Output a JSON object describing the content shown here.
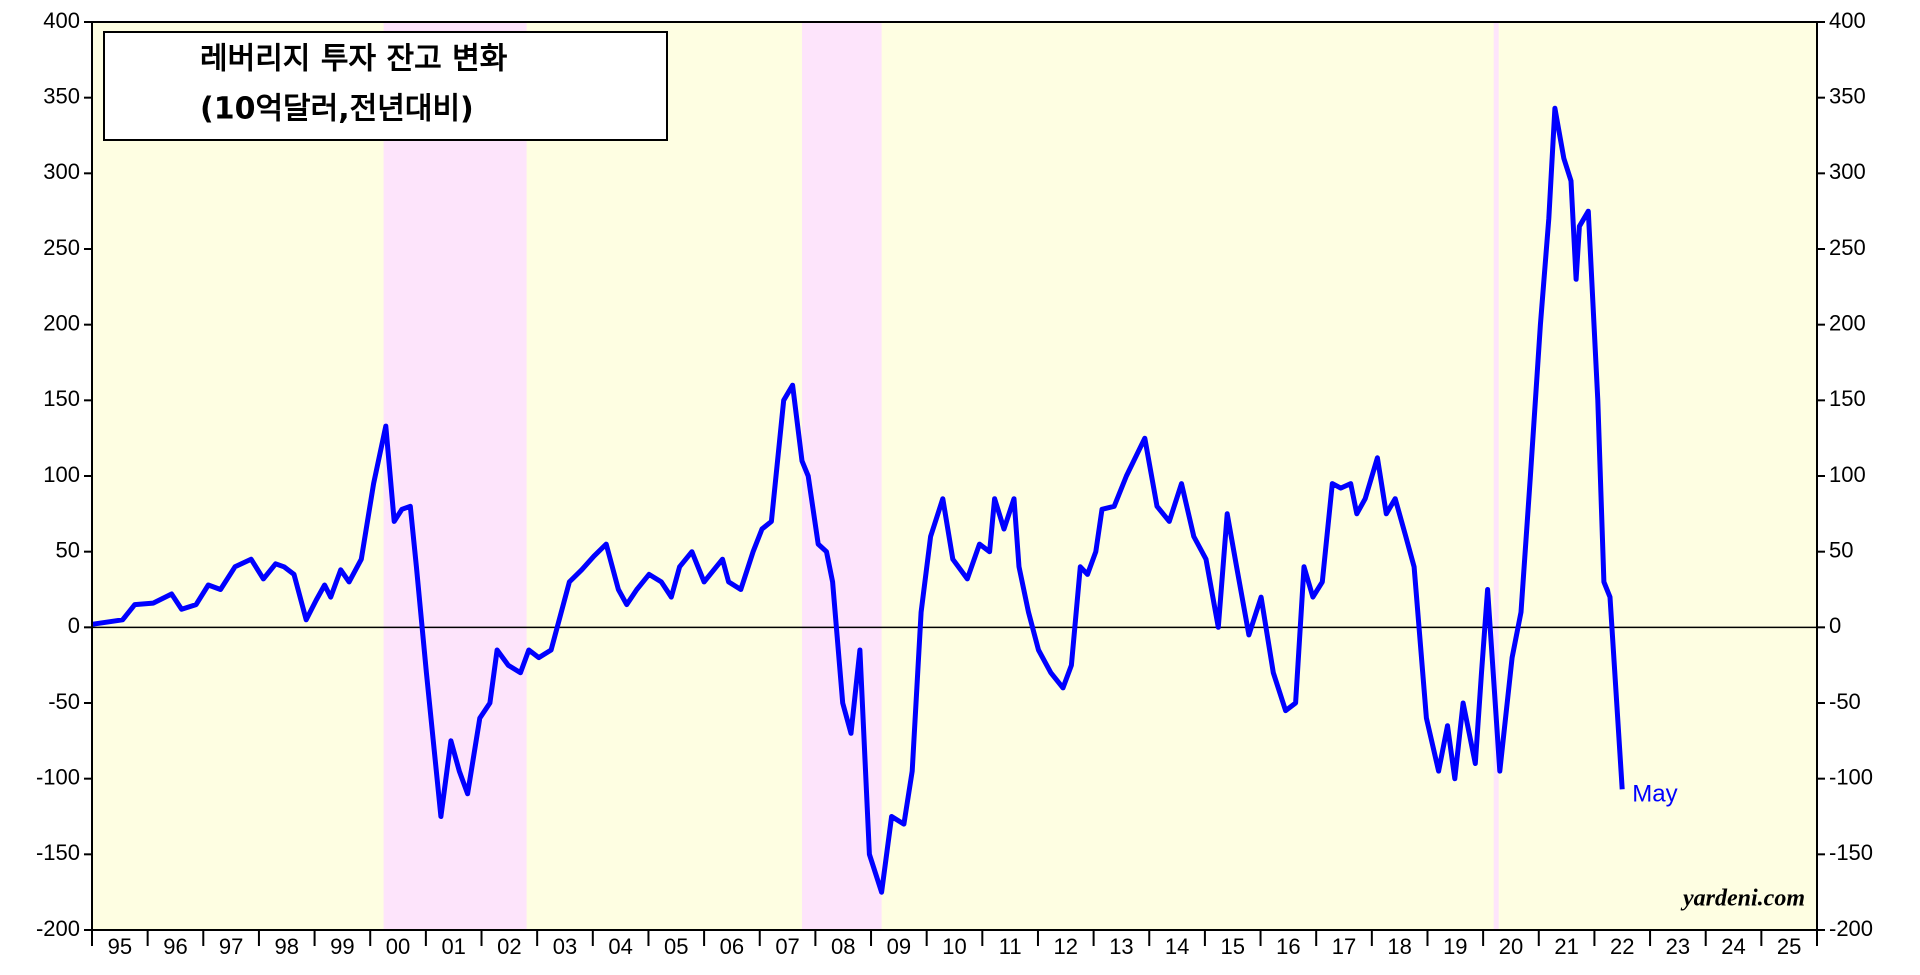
{
  "chart_data": {
    "type": "line",
    "title": "레버리지 투자 잔고 변화",
    "subtitle": "(10억달러,전년대비)",
    "annotation": "May",
    "source": "yardeni.com",
    "color": "#0000ff",
    "background_color": "#fefee2",
    "shade_color": "#fde4fb",
    "shaded_periods": [
      [
        2000.24,
        2002.81
      ],
      [
        2007.76,
        2009.19
      ],
      [
        2020.19,
        2020.28
      ]
    ],
    "xlim": [
      1995,
      2026
    ],
    "ylim": [
      -200,
      400
    ],
    "yticks": [
      -200,
      -150,
      -100,
      -50,
      0,
      50,
      100,
      150,
      200,
      250,
      300,
      350,
      400
    ],
    "xticks": [
      {
        "value": 1995,
        "label": "95"
      },
      {
        "value": 1996,
        "label": "96"
      },
      {
        "value": 1997,
        "label": "97"
      },
      {
        "value": 1998,
        "label": "98"
      },
      {
        "value": 1999,
        "label": "99"
      },
      {
        "value": 2000,
        "label": "00"
      },
      {
        "value": 2001,
        "label": "01"
      },
      {
        "value": 2002,
        "label": "02"
      },
      {
        "value": 2003,
        "label": "03"
      },
      {
        "value": 2004,
        "label": "04"
      },
      {
        "value": 2005,
        "label": "05"
      },
      {
        "value": 2006,
        "label": "06"
      },
      {
        "value": 2007,
        "label": "07"
      },
      {
        "value": 2008,
        "label": "08"
      },
      {
        "value": 2009,
        "label": "09"
      },
      {
        "value": 2010,
        "label": "10"
      },
      {
        "value": 2011,
        "label": "11"
      },
      {
        "value": 2012,
        "label": "12"
      },
      {
        "value": 2013,
        "label": "13"
      },
      {
        "value": 2014,
        "label": "14"
      },
      {
        "value": 2015,
        "label": "15"
      },
      {
        "value": 2016,
        "label": "16"
      },
      {
        "value": 2017,
        "label": "17"
      },
      {
        "value": 2018,
        "label": "18"
      },
      {
        "value": 2019,
        "label": "19"
      },
      {
        "value": 2020,
        "label": "20"
      },
      {
        "value": 2021,
        "label": "21"
      },
      {
        "value": 2022,
        "label": "22"
      },
      {
        "value": 2023,
        "label": "23"
      },
      {
        "value": 2024,
        "label": "24"
      },
      {
        "value": 2025,
        "label": "25"
      }
    ],
    "x": [
      1995.0,
      1995.55,
      1995.77,
      1996.1,
      1996.43,
      1996.61,
      1996.87,
      1997.09,
      1997.31,
      1997.57,
      1997.86,
      1998.08,
      1998.3,
      1998.45,
      1998.63,
      1998.85,
      1999.03,
      1999.18,
      1999.29,
      1999.47,
      1999.62,
      1999.84,
      2000.06,
      2000.28,
      2000.43,
      2000.57,
      2000.72,
      2000.83,
      2001.01,
      2001.27,
      2001.45,
      2001.6,
      2001.75,
      2001.97,
      2002.15,
      2002.28,
      2002.48,
      2002.7,
      2002.85,
      2003.03,
      2003.25,
      2003.58,
      2003.8,
      2004.02,
      2004.24,
      2004.46,
      2004.61,
      2004.79,
      2005.01,
      2005.23,
      2005.41,
      2005.56,
      2005.78,
      2006.0,
      2006.22,
      2006.33,
      2006.44,
      2006.66,
      2006.88,
      2007.04,
      2007.21,
      2007.43,
      2007.59,
      2007.76,
      2007.87,
      2008.05,
      2008.2,
      2008.31,
      2008.49,
      2008.64,
      2008.8,
      2008.97,
      2009.19,
      2009.37,
      2009.59,
      2009.74,
      2009.9,
      2010.07,
      2010.29,
      2010.47,
      2010.73,
      2010.95,
      2011.13,
      2011.22,
      2011.39,
      2011.57,
      2011.66,
      2011.83,
      2012.01,
      2012.23,
      2012.45,
      2012.6,
      2012.76,
      2012.89,
      2013.04,
      2013.15,
      2013.37,
      2013.59,
      2013.92,
      2014.14,
      2014.36,
      2014.58,
      2014.8,
      2015.02,
      2015.24,
      2015.4,
      2015.57,
      2015.79,
      2016.01,
      2016.23,
      2016.45,
      2016.63,
      2016.78,
      2016.94,
      2017.11,
      2017.29,
      2017.44,
      2017.62,
      2017.73,
      2017.88,
      2018.1,
      2018.26,
      2018.42,
      2018.61,
      2018.76,
      2018.98,
      2019.2,
      2019.36,
      2019.49,
      2019.64,
      2019.86,
      2019.97,
      2020.08,
      2020.3,
      2020.52,
      2020.68,
      2020.85,
      2021.03,
      2021.18,
      2021.29,
      2021.45,
      2021.58,
      2021.67,
      2021.73,
      2021.89,
      2022.06,
      2022.17,
      2022.28,
      2022.5
    ],
    "values": [
      2,
      5,
      15,
      16,
      22,
      12,
      15,
      28,
      25,
      40,
      45,
      32,
      42,
      40,
      35,
      5,
      18,
      28,
      20,
      38,
      30,
      45,
      95,
      133,
      70,
      78,
      80,
      40,
      -30,
      -125,
      -75,
      -95,
      -110,
      -60,
      -50,
      -15,
      -25,
      -30,
      -15,
      -20,
      -15,
      30,
      38,
      47,
      55,
      25,
      15,
      25,
      35,
      30,
      20,
      40,
      50,
      30,
      40,
      45,
      30,
      25,
      50,
      65,
      70,
      150,
      160,
      110,
      100,
      55,
      50,
      30,
      -50,
      -70,
      -15,
      -150,
      -175,
      -125,
      -130,
      -95,
      10,
      60,
      85,
      45,
      32,
      55,
      50,
      85,
      65,
      85,
      40,
      10,
      -15,
      -30,
      -40,
      -25,
      40,
      35,
      50,
      78,
      80,
      100,
      125,
      80,
      70,
      95,
      60,
      45,
      0,
      75,
      40,
      -5,
      20,
      -30,
      -55,
      -50,
      40,
      20,
      30,
      95,
      92,
      95,
      75,
      85,
      112,
      75,
      85,
      60,
      40,
      -60,
      -95,
      -65,
      -100,
      -50,
      -90,
      -30,
      25,
      -95,
      -20,
      10,
      100,
      200,
      270,
      343,
      310,
      295,
      230,
      265,
      275,
      150,
      30,
      20,
      -107
    ]
  }
}
